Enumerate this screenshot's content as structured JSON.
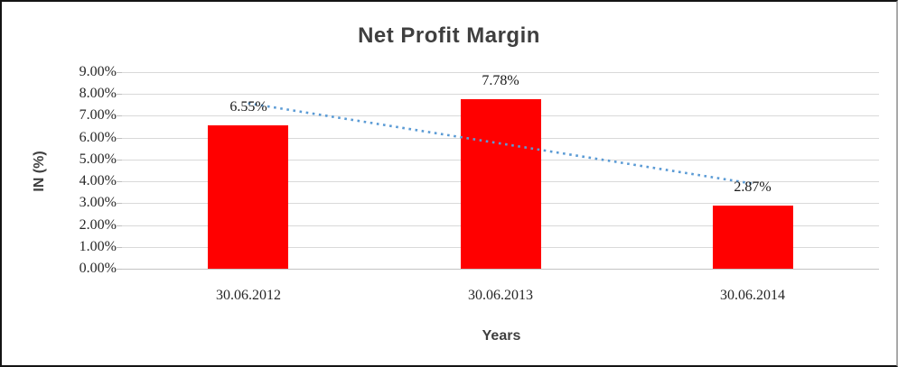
{
  "chart_data": {
    "type": "bar",
    "title": "Net Profit Margin",
    "categories": [
      "30.06.2012",
      "30.06.2013",
      "30.06.2014"
    ],
    "values": [
      6.55,
      7.78,
      2.87
    ],
    "data_labels": [
      "6.55%",
      "7.78%",
      "2.87%"
    ],
    "xlabel": "Years",
    "ylabel": "IN (%)",
    "ylim": [
      0,
      9
    ],
    "ytick_labels": [
      "0.00%",
      "1.00%",
      "2.00%",
      "3.00%",
      "4.00%",
      "5.00%",
      "6.00%",
      "7.00%",
      "8.00%",
      "9.00%"
    ],
    "grid": true,
    "legend": "none",
    "bar_color": "#FF0000",
    "trendline": {
      "type": "linear",
      "style": "dotted",
      "color": "#5B9BD5"
    }
  }
}
